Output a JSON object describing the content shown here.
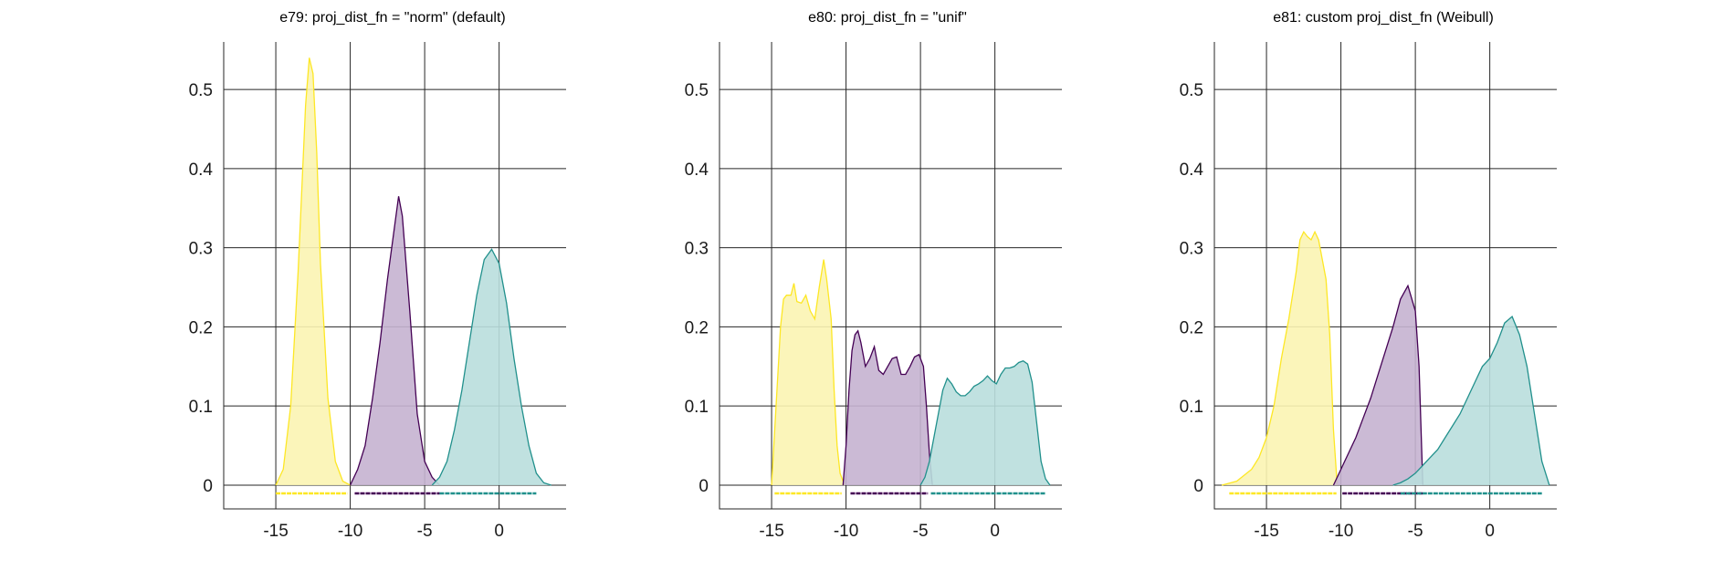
{
  "chart_data": [
    {
      "type": "area",
      "title": "e79: proj_dist_fn = \"norm\" (default)",
      "xlabel": "",
      "ylabel": "",
      "xlim": [
        -18.5,
        4.5
      ],
      "ylim": [
        -0.03,
        0.56
      ],
      "xticks": [
        -15,
        -10,
        -5,
        0
      ],
      "yticks": [
        0,
        0.1,
        0.2,
        0.3,
        0.4,
        0.5
      ],
      "grid": true,
      "series": [
        {
          "color": "#fde725",
          "fill": "#fbf4b2",
          "x": [
            -15.0,
            -14.5,
            -14.0,
            -13.5,
            -13.0,
            -12.75,
            -12.5,
            -12.25,
            -12.0,
            -11.5,
            -11.0,
            -10.5,
            -10.0
          ],
          "y": [
            0.0,
            0.02,
            0.1,
            0.27,
            0.48,
            0.54,
            0.52,
            0.42,
            0.28,
            0.11,
            0.03,
            0.005,
            0.0
          ],
          "rug": [
            -15.0,
            -10.2
          ]
        },
        {
          "color": "#440154",
          "fill": "#c5b2d0",
          "x": [
            -10.0,
            -9.5,
            -9.0,
            -8.5,
            -8.0,
            -7.5,
            -7.0,
            -6.75,
            -6.5,
            -6.0,
            -5.5,
            -5.0,
            -4.5,
            -4.0
          ],
          "y": [
            0.0,
            0.02,
            0.05,
            0.11,
            0.18,
            0.26,
            0.33,
            0.365,
            0.34,
            0.22,
            0.09,
            0.03,
            0.01,
            0.0
          ],
          "rug": [
            -9.7,
            -4.0
          ]
        },
        {
          "color": "#21908c",
          "fill": "#b9dedd",
          "x": [
            -4.5,
            -4.0,
            -3.5,
            -3.0,
            -2.5,
            -2.0,
            -1.5,
            -1.0,
            -0.5,
            0.0,
            0.5,
            1.0,
            1.5,
            2.0,
            2.5,
            3.0,
            3.5
          ],
          "y": [
            0.0,
            0.01,
            0.03,
            0.07,
            0.12,
            0.18,
            0.24,
            0.285,
            0.298,
            0.28,
            0.23,
            0.16,
            0.1,
            0.05,
            0.015,
            0.003,
            0.0
          ],
          "rug": [
            -4.0,
            2.5
          ]
        }
      ]
    },
    {
      "type": "area",
      "title": "e80: proj_dist_fn = \"unif\"",
      "xlabel": "",
      "ylabel": "",
      "xlim": [
        -18.5,
        4.5
      ],
      "ylim": [
        -0.03,
        0.56
      ],
      "xticks": [
        -15,
        -10,
        -5,
        0
      ],
      "yticks": [
        0,
        0.1,
        0.2,
        0.3,
        0.4,
        0.5
      ],
      "grid": true,
      "series": [
        {
          "color": "#fde725",
          "fill": "#fbf4b2",
          "x": [
            -15.0,
            -14.7,
            -14.4,
            -14.2,
            -14.0,
            -13.7,
            -13.5,
            -13.3,
            -13.0,
            -12.7,
            -12.4,
            -12.1,
            -11.8,
            -11.5,
            -11.3,
            -11.0,
            -10.8,
            -10.6,
            -10.4,
            -10.1
          ],
          "y": [
            0.0,
            0.1,
            0.2,
            0.235,
            0.24,
            0.24,
            0.255,
            0.232,
            0.23,
            0.24,
            0.22,
            0.21,
            0.25,
            0.285,
            0.26,
            0.21,
            0.12,
            0.05,
            0.015,
            0.0
          ],
          "rug": [
            -14.8,
            -10.3
          ]
        },
        {
          "color": "#440154",
          "fill": "#c5b2d0",
          "x": [
            -10.2,
            -10.0,
            -9.8,
            -9.6,
            -9.4,
            -9.2,
            -9.0,
            -8.7,
            -8.4,
            -8.1,
            -7.8,
            -7.5,
            -7.2,
            -6.9,
            -6.6,
            -6.3,
            -6.0,
            -5.7,
            -5.4,
            -5.1,
            -4.8,
            -4.6,
            -4.4,
            -4.2
          ],
          "y": [
            0.0,
            0.05,
            0.12,
            0.17,
            0.19,
            0.195,
            0.18,
            0.15,
            0.16,
            0.175,
            0.145,
            0.14,
            0.15,
            0.16,
            0.162,
            0.14,
            0.14,
            0.15,
            0.162,
            0.165,
            0.15,
            0.1,
            0.04,
            0.0
          ],
          "rug": [
            -9.7,
            -4.5
          ]
        },
        {
          "color": "#21908c",
          "fill": "#b9dedd",
          "x": [
            -5.0,
            -4.7,
            -4.4,
            -4.1,
            -3.8,
            -3.5,
            -3.2,
            -2.9,
            -2.6,
            -2.3,
            -2.0,
            -1.7,
            -1.4,
            -1.1,
            -0.8,
            -0.5,
            -0.2,
            0.1,
            0.4,
            0.7,
            1.0,
            1.3,
            1.6,
            1.9,
            2.2,
            2.5,
            2.8,
            3.1,
            3.4,
            3.7
          ],
          "y": [
            0.0,
            0.01,
            0.03,
            0.06,
            0.09,
            0.12,
            0.135,
            0.128,
            0.118,
            0.113,
            0.113,
            0.118,
            0.125,
            0.128,
            0.132,
            0.138,
            0.132,
            0.128,
            0.14,
            0.148,
            0.148,
            0.15,
            0.155,
            0.157,
            0.153,
            0.13,
            0.08,
            0.03,
            0.008,
            0.0
          ],
          "rug": [
            -4.3,
            3.4
          ]
        }
      ]
    },
    {
      "type": "area",
      "title": "e81: custom proj_dist_fn (Weibull)",
      "xlabel": "",
      "ylabel": "",
      "xlim": [
        -18.5,
        4.5
      ],
      "ylim": [
        -0.03,
        0.56
      ],
      "xticks": [
        -15,
        -10,
        -5,
        0
      ],
      "yticks": [
        0,
        0.1,
        0.2,
        0.3,
        0.4,
        0.5
      ],
      "grid": true,
      "series": [
        {
          "color": "#fde725",
          "fill": "#fbf4b2",
          "x": [
            -18.0,
            -17.0,
            -16.0,
            -15.5,
            -15.0,
            -14.5,
            -14.0,
            -13.5,
            -13.0,
            -12.75,
            -12.5,
            -12.25,
            -12.0,
            -11.75,
            -11.5,
            -11.25,
            -11.0,
            -10.75,
            -10.5,
            -10.25
          ],
          "y": [
            0.0,
            0.005,
            0.02,
            0.035,
            0.06,
            0.1,
            0.16,
            0.21,
            0.27,
            0.31,
            0.32,
            0.314,
            0.31,
            0.32,
            0.31,
            0.285,
            0.26,
            0.19,
            0.07,
            0.0
          ],
          "rug": [
            -17.5,
            -10.3
          ]
        },
        {
          "color": "#440154",
          "fill": "#c5b2d0",
          "x": [
            -10.5,
            -10.0,
            -9.5,
            -9.0,
            -8.5,
            -8.0,
            -7.5,
            -7.0,
            -6.5,
            -6.0,
            -5.5,
            -5.0,
            -4.75,
            -4.5
          ],
          "y": [
            0.0,
            0.02,
            0.04,
            0.06,
            0.085,
            0.11,
            0.14,
            0.17,
            0.2,
            0.235,
            0.252,
            0.22,
            0.15,
            0.0
          ],
          "rug": [
            -9.9,
            -4.5
          ]
        },
        {
          "color": "#21908c",
          "fill": "#b9dedd",
          "x": [
            -6.5,
            -6.0,
            -5.5,
            -5.0,
            -4.5,
            -4.0,
            -3.5,
            -3.0,
            -2.5,
            -2.0,
            -1.5,
            -1.0,
            -0.5,
            0.0,
            0.5,
            1.0,
            1.5,
            2.0,
            2.5,
            3.0,
            3.5,
            4.0
          ],
          "y": [
            0.0,
            0.003,
            0.008,
            0.015,
            0.025,
            0.035,
            0.045,
            0.06,
            0.075,
            0.09,
            0.11,
            0.13,
            0.15,
            0.16,
            0.18,
            0.205,
            0.213,
            0.19,
            0.15,
            0.09,
            0.03,
            0.0
          ],
          "rug": [
            -6.0,
            3.5
          ]
        }
      ]
    }
  ]
}
